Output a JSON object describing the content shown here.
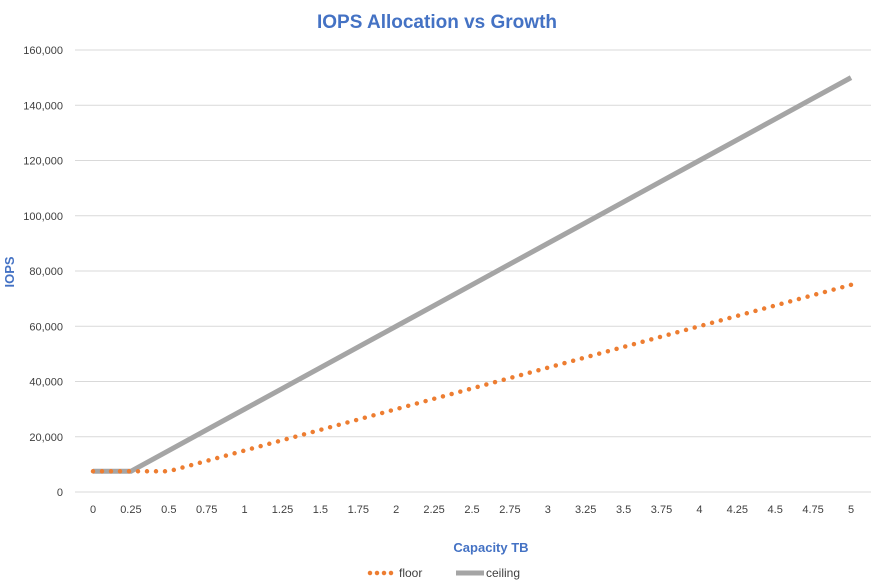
{
  "chart_data": {
    "type": "line",
    "title": "IOPS Allocation vs Growth",
    "xlabel": "Capacity TB",
    "ylabel": "IOPS",
    "categories": [
      "0",
      "0.25",
      "0.5",
      "0.75",
      "1",
      "1.25",
      "1.5",
      "1.75",
      "2",
      "2.25",
      "2.5",
      "2.75",
      "3",
      "3.25",
      "3.5",
      "3.75",
      "4",
      "4.25",
      "4.5",
      "4.75",
      "5"
    ],
    "ylim": [
      0,
      160000
    ],
    "yticks": [
      "0",
      "20,000",
      "40,000",
      "60,000",
      "80,000",
      "100,000",
      "120,000",
      "140,000",
      "160,000"
    ],
    "grid": true,
    "legend": "bottom",
    "series": [
      {
        "name": "floor",
        "style": "dotted",
        "color": "#ED7D31",
        "values": [
          7500,
          7500,
          7500,
          11250,
          15000,
          18750,
          22500,
          26250,
          30000,
          33750,
          37500,
          41250,
          45000,
          48750,
          52500,
          56250,
          60000,
          63750,
          67500,
          71250,
          75000
        ]
      },
      {
        "name": "ceiling",
        "style": "solid",
        "color": "#A5A5A5",
        "values": [
          7500,
          7500,
          15000,
          22500,
          30000,
          37500,
          45000,
          52500,
          60000,
          67500,
          75000,
          82500,
          90000,
          97500,
          105000,
          112500,
          120000,
          127500,
          135000,
          142500,
          150000
        ]
      }
    ],
    "colors": {
      "title": "#4472C4",
      "axis_label": "#4472C4",
      "grid": "#D9D9D9"
    }
  }
}
